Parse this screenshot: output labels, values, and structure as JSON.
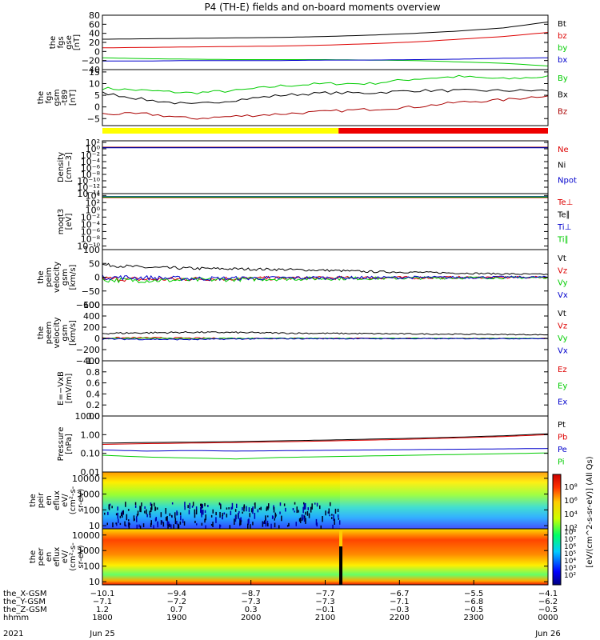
{
  "title": "P4 (TH-E) fields and on-board moments overview",
  "chart_data": [
    {
      "type": "line",
      "ylabel": [
        "the",
        "fgs",
        "gse",
        "[nT]"
      ],
      "ylim": [
        -40,
        80
      ],
      "yticks": [
        "80",
        "60",
        "40",
        "20",
        "0",
        "−20",
        "−40"
      ],
      "yticks_val": [
        80,
        60,
        40,
        20,
        0,
        -20,
        -40
      ],
      "series": [
        {
          "name": "Bt",
          "color": "#000000",
          "values": [
            27,
            28,
            29,
            30,
            31,
            33,
            36,
            40,
            45,
            52,
            65
          ]
        },
        {
          "name": "bz",
          "color": "#dd0000",
          "values": [
            8,
            9,
            10,
            11,
            12,
            14,
            17,
            21,
            27,
            33,
            42
          ]
        },
        {
          "name": "by",
          "color": "#00cc00",
          "values": [
            -14,
            -16,
            -17,
            -18,
            -18,
            -18,
            -19,
            -20,
            -23,
            -26,
            -32
          ]
        },
        {
          "name": "bx",
          "color": "#0000cc",
          "values": [
            -21,
            -21,
            -20,
            -20,
            -20,
            -19,
            -19,
            -18,
            -17,
            -15,
            -14
          ]
        }
      ]
    },
    {
      "type": "line",
      "ylabel": [
        "the",
        "fgs",
        "gsm",
        "-t89",
        "[nT]"
      ],
      "ylim": [
        -8,
        16
      ],
      "yticks": [
        "15",
        "10",
        "5",
        "0",
        "−5"
      ],
      "yticks_val": [
        15,
        10,
        5,
        0,
        -5
      ],
      "series": [
        {
          "name": "By",
          "color": "#00cc00",
          "values": [
            8,
            7,
            6,
            7,
            9,
            10,
            10,
            12,
            13,
            12,
            13
          ]
        },
        {
          "name": "Bx",
          "color": "#000000",
          "values": [
            6,
            3,
            1,
            3,
            5,
            6,
            6,
            7,
            7,
            7,
            7
          ]
        },
        {
          "name": "Bz",
          "color": "#aa0000",
          "values": [
            -3,
            -3,
            -5,
            -4,
            -3,
            -2,
            -1,
            0,
            2,
            3,
            5
          ]
        }
      ]
    },
    {
      "type": "line",
      "ylabel": [
        "Density",
        "[cm−3]"
      ],
      "ylog": true,
      "yticks": [
        "10²",
        "10⁰",
        "10⁻²",
        "10⁻⁴",
        "10⁻⁶",
        "10⁻⁸",
        "10⁻¹⁰",
        "10⁻¹²",
        "10⁻¹⁴"
      ],
      "yticks_val": [
        2,
        0,
        -2,
        -4,
        -6,
        -8,
        -10,
        -12,
        -14
      ],
      "ylim": [
        -14,
        2.5
      ],
      "series": [
        {
          "name": "Ne",
          "color": "#dd0000",
          "values": [
            0.5,
            0.5,
            0.5,
            0.5,
            0.5,
            0.5,
            0.5,
            0.5,
            0.5,
            0.5,
            0.5
          ]
        },
        {
          "name": "Ni",
          "color": "#000000",
          "values": [
            0.4,
            0.4,
            0.4,
            0.4,
            0.4,
            0.4,
            0.4,
            0.4,
            0.4,
            0.4,
            0.4
          ]
        },
        {
          "name": "Npot",
          "color": "#0000cc",
          "values": [
            0.3,
            0.3,
            0.3,
            0.3,
            0.3,
            0.3,
            0.3,
            0.3,
            0.3,
            0.3,
            0.3
          ]
        }
      ]
    },
    {
      "type": "line",
      "ylabel": [
        "moqt3",
        "[eV]"
      ],
      "ylog": true,
      "yticks": [
        "10⁴",
        "10²",
        "10⁰",
        "10⁻²",
        "10⁻⁴",
        "10⁻⁶",
        "10⁻⁸",
        "10⁻¹⁰"
      ],
      "yticks_val": [
        4,
        2,
        0,
        -2,
        -4,
        -6,
        -8,
        -10
      ],
      "ylim": [
        -11,
        4.5
      ],
      "series": [
        {
          "name": "Te⊥",
          "color": "#dd0000",
          "values": [
            3.4,
            3.4,
            3.4,
            3.4,
            3.4,
            3.4,
            3.4,
            3.4,
            3.4,
            3.4,
            3.4
          ]
        },
        {
          "name": "Te∥",
          "color": "#000000",
          "values": [
            3.5,
            3.5,
            3.5,
            3.5,
            3.5,
            3.5,
            3.5,
            3.5,
            3.5,
            3.5,
            3.5
          ]
        },
        {
          "name": "Ti⊥",
          "color": "#0000cc",
          "values": [
            3.7,
            3.7,
            3.7,
            3.7,
            3.7,
            3.7,
            3.7,
            3.7,
            3.7,
            3.7,
            3.7
          ]
        },
        {
          "name": "Ti∥",
          "color": "#00cc00",
          "values": [
            3.6,
            3.6,
            3.6,
            3.6,
            3.6,
            3.6,
            3.6,
            3.6,
            3.6,
            3.6,
            3.6
          ]
        }
      ]
    },
    {
      "type": "line",
      "ylabel": [
        "the",
        "peim",
        "velocity",
        "gsm",
        "[km/s]"
      ],
      "ylim": [
        -100,
        100
      ],
      "yticks": [
        "100",
        "50",
        "0",
        "−50",
        "−100"
      ],
      "yticks_val": [
        100,
        50,
        0,
        -50,
        -100
      ],
      "series": [
        {
          "name": "Vt",
          "color": "#000000",
          "values": [
            45,
            35,
            32,
            30,
            28,
            25,
            20,
            18,
            15,
            12,
            10
          ]
        },
        {
          "name": "Vz",
          "color": "#dd0000",
          "values": [
            -5,
            -8,
            -6,
            -5,
            -4,
            -3,
            -2,
            -2,
            -1,
            -1,
            0
          ]
        },
        {
          "name": "Vy",
          "color": "#00cc00",
          "values": [
            -10,
            -12,
            -10,
            -8,
            -6,
            -5,
            -4,
            -3,
            -2,
            -2,
            -1
          ]
        },
        {
          "name": "Vx",
          "color": "#0000cc",
          "values": [
            0,
            -2,
            -5,
            -4,
            -3,
            -2,
            -2,
            -1,
            -1,
            0,
            0
          ]
        }
      ]
    },
    {
      "type": "line",
      "ylabel": [
        "the",
        "peem",
        "velocity",
        "gsm",
        "[km/s]"
      ],
      "ylim": [
        -400,
        600
      ],
      "yticks": [
        "600",
        "400",
        "200",
        "0",
        "−200",
        "−400"
      ],
      "yticks_val": [
        600,
        400,
        200,
        0,
        -200,
        -400
      ],
      "series": [
        {
          "name": "Vt",
          "color": "#000000",
          "values": [
            90,
            100,
            110,
            105,
            95,
            90,
            85,
            80,
            75,
            70,
            65
          ]
        },
        {
          "name": "Vz",
          "color": "#dd0000",
          "values": [
            10,
            10,
            5,
            0,
            0,
            0,
            0,
            0,
            0,
            0,
            0
          ]
        },
        {
          "name": "Vy",
          "color": "#00cc00",
          "values": [
            0,
            0,
            -5,
            0,
            0,
            0,
            0,
            0,
            0,
            0,
            0
          ]
        },
        {
          "name": "Vx",
          "color": "#0000cc",
          "values": [
            -10,
            -15,
            -20,
            -10,
            -5,
            -5,
            -5,
            -5,
            -5,
            -5,
            -5
          ]
        }
      ]
    },
    {
      "type": "line",
      "ylabel": [
        "E=−VxB",
        "[mV/m]"
      ],
      "ylim": [
        0,
        1
      ],
      "yticks": [
        "1.0",
        "0.8",
        "0.6",
        "0.4",
        "0.2",
        "0.0"
      ],
      "yticks_val": [
        1.0,
        0.8,
        0.6,
        0.4,
        0.2,
        0.0
      ],
      "series": [
        {
          "name": "Ez",
          "color": "#dd0000",
          "values": []
        },
        {
          "name": "Ey",
          "color": "#00cc00",
          "values": []
        },
        {
          "name": "Ex",
          "color": "#0000cc",
          "values": []
        }
      ]
    },
    {
      "type": "line",
      "ylabel": [
        "Pressure",
        "[nPa]"
      ],
      "ylog": true,
      "yticks": [
        "10.00",
        "1.00",
        "0.10",
        "0.01"
      ],
      "yticks_val": [
        1,
        0,
        -1,
        -2
      ],
      "ylim": [
        -2,
        1
      ],
      "series": [
        {
          "name": "Pt",
          "color": "#000000",
          "values": [
            -0.45,
            -0.42,
            -0.4,
            -0.37,
            -0.33,
            -0.29,
            -0.24,
            -0.19,
            -0.13,
            -0.06,
            0.05
          ]
        },
        {
          "name": "Pb",
          "color": "#dd0000",
          "values": [
            -0.52,
            -0.48,
            -0.45,
            -0.42,
            -0.38,
            -0.34,
            -0.29,
            -0.24,
            -0.17,
            -0.1,
            0.0
          ]
        },
        {
          "name": "Pe",
          "color": "#0000cc",
          "values": [
            -0.82,
            -0.88,
            -0.85,
            -0.88,
            -0.86,
            -0.84,
            -0.82,
            -0.8,
            -0.78,
            -0.76,
            -0.74
          ]
        },
        {
          "name": "Pi",
          "color": "#00cc00",
          "values": [
            -1.1,
            -1.2,
            -1.25,
            -1.3,
            -1.22,
            -1.18,
            -1.14,
            -1.1,
            -1.06,
            -1.02,
            -0.98
          ]
        }
      ]
    },
    {
      "type": "heatmap",
      "ylabel": [
        "the",
        "peir",
        "en",
        "eflux",
        "eV/",
        "(cm²-s-",
        "sr-eV)"
      ],
      "yticks": [
        "10000",
        "1000",
        "100",
        "10"
      ],
      "yticks_val": [
        4,
        3,
        2,
        1
      ],
      "ylim": [
        0.8,
        4.4
      ]
    },
    {
      "type": "heatmap",
      "ylabel": [
        "the",
        "peer",
        "en",
        "eflux",
        "eV/",
        "(cm²-s-",
        "sr-eV)"
      ],
      "yticks": [
        "10000",
        "1000",
        "100",
        "10"
      ],
      "yticks_val": [
        4,
        3,
        2,
        1
      ],
      "ylim": [
        0.8,
        4.4
      ]
    }
  ],
  "colorbar": {
    "label": "[eV/(cm^2-s-sr-eV)] (All Qs)",
    "ticks": [
      "10⁸",
      "10⁶",
      "10⁴",
      "10²"
    ],
    "ticks2": [
      "10⁸",
      "10⁷",
      "10⁶",
      "10⁵",
      "10⁴",
      "10³",
      "10²"
    ]
  },
  "orbit_bar": {
    "yellow_fraction": 0.53
  },
  "x_axis": {
    "rows": [
      {
        "label": "the_X-GSM",
        "values": [
          "−10.1",
          "−9.4",
          "−8.7",
          "−7.7",
          "−6.7",
          "−5.5",
          "−4.1"
        ]
      },
      {
        "label": "the_Y-GSM",
        "values": [
          "−7.1",
          "−7.2",
          "−7.3",
          "−7.3",
          "−7.1",
          "−6.8",
          "−6.2"
        ]
      },
      {
        "label": "the_Z-GSM",
        "values": [
          "1.2",
          "0.7",
          "0.3",
          "−0.1",
          "−0.3",
          "−0.5",
          "−0.5"
        ]
      },
      {
        "label": "hhmm",
        "values": [
          "1800",
          "1900",
          "2000",
          "2100",
          "2200",
          "2300",
          "0000"
        ]
      }
    ],
    "year": "2021",
    "date_start": "Jun 25",
    "date_end": "Jun 26"
  }
}
